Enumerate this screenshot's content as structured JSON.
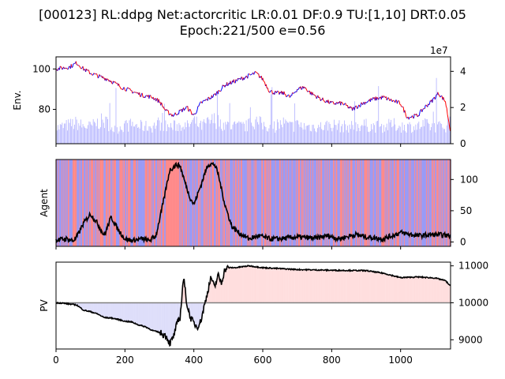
{
  "figure": {
    "title_line1": "[000123] RL:ddpg Net:actorcritic LR:0.01 DF:0.9 TU:[1,10] DRT:0.05",
    "title_line2": "Epoch:221/500 e=0.56"
  },
  "colors": {
    "price_red": "#ff0000",
    "price_blue": "#0000ff",
    "volume": "#b0b0ff",
    "agent_red": "#ff8a8a",
    "agent_blue": "#9a9af5",
    "agent_line": "#000000",
    "pv_line": "#000000",
    "pv_gain_fill": "#ffdede",
    "pv_loss_fill": "#dedefa",
    "baseline": "#808080"
  },
  "chart_data": [
    {
      "type": "line",
      "panel": "env",
      "ylabel": "Env.",
      "ylim": [
        63,
        106
      ],
      "yticks": [
        80,
        100
      ],
      "right_axis": {
        "ylim": [
          0,
          4.8
        ],
        "ticks": [
          0,
          2,
          4
        ],
        "multiplier": "1e7"
      },
      "x": [
        0,
        40,
        60,
        80,
        100,
        130,
        150,
        170,
        190,
        220,
        250,
        280,
        300,
        320,
        340,
        360,
        380,
        400,
        420,
        440,
        460,
        490,
        520,
        550,
        580,
        600,
        620,
        640,
        660,
        680,
        700,
        720,
        740,
        770,
        800,
        830,
        860,
        890,
        920,
        950,
        980,
        1000,
        1020,
        1050,
        1070,
        1090,
        1110,
        1130,
        1145
      ],
      "series": [
        {
          "values": [
            100,
            101,
            103,
            100,
            98,
            96,
            95,
            93,
            91,
            89,
            87,
            86,
            84,
            79,
            77,
            79,
            81,
            77,
            83,
            85,
            87,
            92,
            94,
            96,
            98,
            95,
            89,
            88,
            88,
            86,
            90,
            91,
            88,
            85,
            83,
            83,
            80,
            83,
            85,
            86,
            84,
            83,
            76,
            77,
            81,
            84,
            88,
            84,
            69
          ]
        }
      ],
      "volume_1e7": [
        0.9,
        1.1,
        1.2,
        1.0,
        1.0,
        1.3,
        1.2,
        0.8,
        1.0,
        1.1,
        1.0,
        1.0,
        1.2,
        1.0,
        1.0,
        1.1,
        1.0,
        1.3,
        1.0,
        1.2,
        1.4,
        1.1,
        1.0,
        1.0,
        1.3,
        1.1,
        1.0,
        1.0,
        1.2,
        1.0,
        1.1,
        1.0,
        1.0,
        1.0,
        1.1,
        1.0,
        1.0,
        1.1,
        1.0,
        1.0,
        1.1,
        1.0,
        1.0,
        1.0,
        1.1,
        1.0,
        1.0,
        1.0,
        1.5
      ]
    },
    {
      "type": "line",
      "panel": "agent",
      "ylabel": "Agent",
      "ylim": [
        -7,
        132
      ],
      "yticks": [
        0,
        50,
        100
      ],
      "x": [
        0,
        30,
        50,
        60,
        80,
        100,
        120,
        140,
        160,
        180,
        200,
        220,
        250,
        270,
        290,
        310,
        330,
        350,
        360,
        380,
        390,
        400,
        420,
        440,
        450,
        460,
        470,
        490,
        510,
        530,
        560,
        590,
        620,
        650,
        700,
        750,
        790,
        820,
        870,
        900,
        950,
        1000,
        1050,
        1100,
        1145
      ],
      "series": [
        {
          "values": [
            3,
            5,
            2,
            8,
            30,
            45,
            30,
            10,
            40,
            20,
            5,
            2,
            5,
            2,
            10,
            60,
            115,
            124,
            122,
            85,
            70,
            60,
            90,
            123,
            125,
            124,
            110,
            60,
            25,
            15,
            5,
            10,
            5,
            5,
            8,
            6,
            10,
            5,
            12,
            8,
            5,
            15,
            10,
            12,
            10
          ]
        }
      ],
      "background_actions": [
        "blue",
        "red",
        "blue",
        "red",
        "blue",
        "red",
        "blue",
        "red",
        "blue",
        "red",
        "blue",
        "red",
        "blue",
        "red",
        "blue",
        "red",
        "blue"
      ]
    },
    {
      "type": "area",
      "panel": "pv",
      "ylabel": "PV",
      "xlabel": "",
      "ylim": [
        8750,
        11100
      ],
      "yticks": [
        9000,
        10000,
        11000
      ],
      "baseline": 10000,
      "xlim": [
        0,
        1145
      ],
      "xticks": [
        0,
        200,
        400,
        600,
        800,
        1000
      ],
      "x": [
        0,
        20,
        60,
        80,
        100,
        120,
        140,
        160,
        180,
        200,
        220,
        240,
        260,
        280,
        300,
        320,
        330,
        340,
        350,
        360,
        370,
        380,
        390,
        400,
        410,
        420,
        440,
        450,
        460,
        470,
        480,
        490,
        500,
        520,
        560,
        600,
        700,
        800,
        900,
        950,
        1000,
        1050,
        1100,
        1130,
        1145
      ],
      "series": [
        {
          "values": [
            10000,
            9990,
            9940,
            9800,
            9760,
            9700,
            9600,
            9590,
            9550,
            9500,
            9480,
            9400,
            9350,
            9250,
            9200,
            9100,
            8900,
            9050,
            9400,
            9600,
            10700,
            9950,
            9600,
            9450,
            9350,
            9500,
            10300,
            10700,
            10400,
            10750,
            10550,
            10900,
            10950,
            10950,
            11000,
            10950,
            10900,
            10880,
            10870,
            10800,
            10680,
            10700,
            10670,
            10600,
            10450
          ]
        }
      ]
    }
  ]
}
